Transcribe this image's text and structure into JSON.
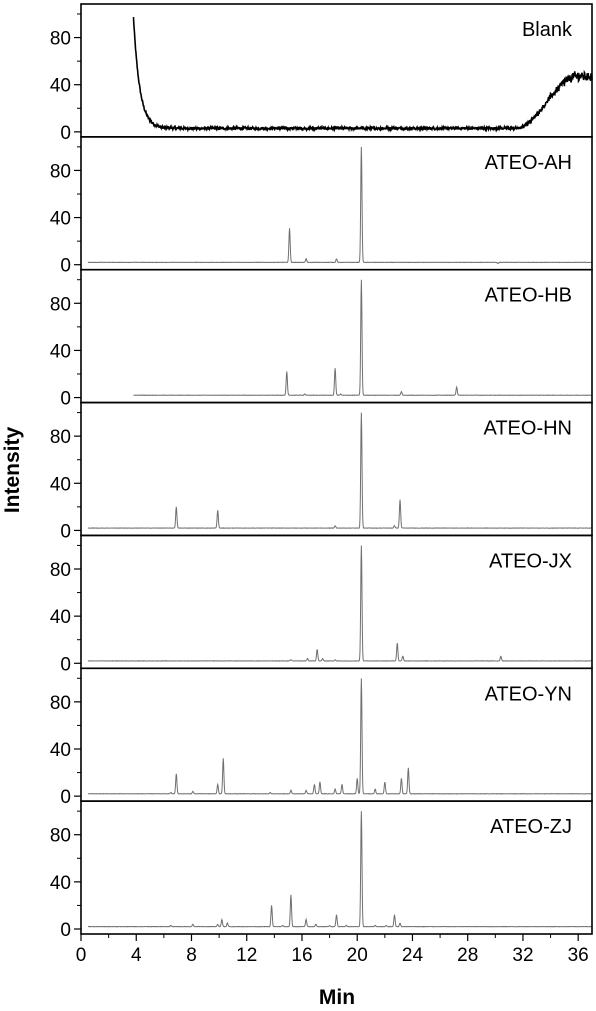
{
  "chart_data": {
    "type": "line",
    "title": "",
    "xlabel": "Min",
    "ylabel": "Intensity",
    "xlim": [
      0,
      37
    ],
    "ylim": [
      0,
      100
    ],
    "x_ticks": [
      0,
      4,
      8,
      12,
      16,
      20,
      24,
      28,
      32,
      36
    ],
    "y_ticks": [
      0,
      40,
      80
    ],
    "grid": false,
    "legend": "none",
    "series": [
      {
        "name": "Blank",
        "color": "#000000",
        "baseline": 3,
        "start": 3.8,
        "noise": 1.2,
        "decay": {
          "start_value": 97,
          "rate": 2.2
        },
        "rise": {
          "from": 31.5,
          "to": 37,
          "max": 47
        },
        "peaks": []
      },
      {
        "name": "ATEO-AH",
        "color": "#707070",
        "baseline": 2,
        "start": 0.5,
        "noise": 0.15,
        "peaks": [
          [
            15.1,
            31
          ],
          [
            16.3,
            5
          ],
          [
            18.5,
            5
          ],
          [
            20.3,
            100
          ],
          [
            22.8,
            2
          ],
          [
            30.2,
            1
          ]
        ]
      },
      {
        "name": "ATEO-HB",
        "color": "#707070",
        "baseline": 2,
        "start": 3.8,
        "noise": 0.15,
        "peaks": [
          [
            14.9,
            22
          ],
          [
            16.2,
            3
          ],
          [
            18.4,
            25
          ],
          [
            18.8,
            3
          ],
          [
            20.3,
            100
          ],
          [
            23.2,
            5
          ],
          [
            27.2,
            9
          ],
          [
            30.5,
            2
          ]
        ]
      },
      {
        "name": "ATEO-HN",
        "color": "#707070",
        "baseline": 2,
        "start": 0.5,
        "noise": 0.15,
        "peaks": [
          [
            6.5,
            2
          ],
          [
            6.9,
            20
          ],
          [
            9.9,
            17
          ],
          [
            18.4,
            4
          ],
          [
            20.3,
            100
          ],
          [
            22.7,
            4
          ],
          [
            23.1,
            26
          ],
          [
            30.2,
            2
          ]
        ]
      },
      {
        "name": "ATEO-JX",
        "color": "#707070",
        "baseline": 2,
        "start": 0.5,
        "noise": 0.15,
        "peaks": [
          [
            6.5,
            2
          ],
          [
            10.1,
            2
          ],
          [
            15.2,
            3
          ],
          [
            16.4,
            4
          ],
          [
            17.1,
            12
          ],
          [
            17.5,
            4
          ],
          [
            18.4,
            3
          ],
          [
            20.3,
            100
          ],
          [
            22.9,
            17
          ],
          [
            23.3,
            6
          ],
          [
            26.5,
            2
          ],
          [
            30.4,
            6
          ]
        ]
      },
      {
        "name": "ATEO-YN",
        "color": "#707070",
        "baseline": 2,
        "start": 0.5,
        "noise": 0.15,
        "peaks": [
          [
            6.5,
            3
          ],
          [
            6.9,
            19
          ],
          [
            8.1,
            4
          ],
          [
            9.9,
            10
          ],
          [
            10.3,
            32
          ],
          [
            13.7,
            3
          ],
          [
            15.2,
            5
          ],
          [
            16.3,
            5
          ],
          [
            16.9,
            10
          ],
          [
            17.3,
            12
          ],
          [
            18.4,
            6
          ],
          [
            18.9,
            10
          ],
          [
            20.0,
            15
          ],
          [
            20.3,
            100
          ],
          [
            21.3,
            6
          ],
          [
            22.0,
            12
          ],
          [
            23.2,
            15
          ],
          [
            23.7,
            24
          ],
          [
            26.2,
            2
          ],
          [
            30.3,
            2
          ]
        ]
      },
      {
        "name": "ATEO-ZJ",
        "color": "#707070",
        "baseline": 2,
        "start": 0.5,
        "noise": 0.15,
        "peaks": [
          [
            6.5,
            3
          ],
          [
            8.1,
            4
          ],
          [
            9.9,
            4
          ],
          [
            10.2,
            8
          ],
          [
            10.6,
            5
          ],
          [
            13.8,
            20
          ],
          [
            14.6,
            3
          ],
          [
            15.2,
            29
          ],
          [
            16.3,
            8
          ],
          [
            17.0,
            4
          ],
          [
            18.0,
            3
          ],
          [
            18.5,
            12
          ],
          [
            19.2,
            3
          ],
          [
            20.3,
            100
          ],
          [
            21.3,
            3
          ],
          [
            22.1,
            3
          ],
          [
            22.7,
            12
          ],
          [
            23.1,
            5
          ],
          [
            30.2,
            2
          ]
        ]
      }
    ]
  }
}
